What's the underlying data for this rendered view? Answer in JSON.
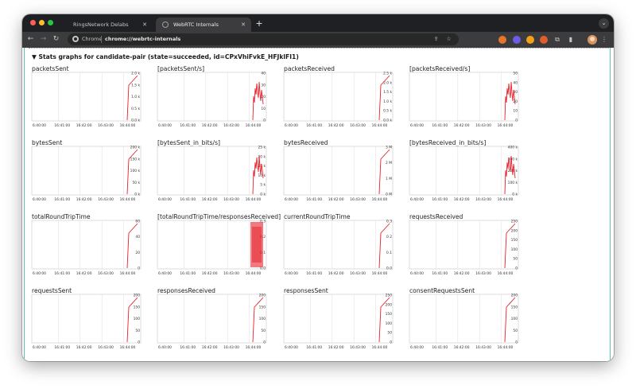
{
  "browser": {
    "tabs": [
      {
        "title": "RingsNetwork Delabs",
        "active": false
      },
      {
        "title": "WebRTC Internals",
        "active": true
      }
    ],
    "omnibox": {
      "chip": "Chrome",
      "url": "chrome://webrtc-internals"
    },
    "colors": {
      "frame": "#1f2023",
      "toolbar": "#3c3c3f",
      "accent": "#5fc1b0",
      "trace": "#e8202a"
    }
  },
  "page": {
    "section_title": "▼ Stats graphs for candidate-pair (state=succeeded, id=CPxVhiFvkE_HFJklFI1)",
    "x_ticks": [
      "6:40:00",
      "16:41:00",
      "16:42:00",
      "16:43:00",
      "16:44:00"
    ]
  },
  "graphs": [
    {
      "label": "packetsSent",
      "y_ticks": [
        "2.0 k",
        "1.5 k",
        "1.0 k",
        "0.5 k",
        "0.0 k"
      ],
      "shape": "ramp",
      "range": [
        0,
        2000
      ]
    },
    {
      "label": "[packetsSent/s]",
      "y_ticks": [
        "40",
        "30",
        "20",
        "10",
        "0"
      ],
      "shape": "noisy",
      "range": [
        0,
        40
      ]
    },
    {
      "label": "packetsReceived",
      "y_ticks": [
        "2.5 k",
        "2.0 k",
        "1.5 k",
        "1.0 k",
        "0.5 k",
        "0.0 k"
      ],
      "shape": "ramp",
      "range": [
        0,
        2500
      ]
    },
    {
      "label": "[packetsReceived/s]",
      "y_ticks": [
        "50",
        "40",
        "30",
        "20",
        "10",
        "0"
      ],
      "shape": "noisy",
      "range": [
        0,
        50
      ]
    },
    {
      "label": "bytesSent",
      "y_ticks": [
        "200 k",
        "150 k",
        "100 k",
        "50 k",
        "0 k"
      ],
      "shape": "ramp",
      "range": [
        0,
        200000
      ]
    },
    {
      "label": "[bytesSent_in_bits/s]",
      "y_ticks": [
        "25 k",
        "20 k",
        "15 k",
        "10 k",
        "5 k",
        "0 k"
      ],
      "shape": "noisy",
      "range": [
        0,
        25000
      ]
    },
    {
      "label": "bytesReceived",
      "y_ticks": [
        "3 M",
        "2 M",
        "1 M",
        "0 M"
      ],
      "shape": "ramp",
      "range": [
        0,
        3000000
      ]
    },
    {
      "label": "[bytesReceived_in_bits/s]",
      "y_ticks": [
        "400 k",
        "300 k",
        "200 k",
        "100 k",
        "0 k"
      ],
      "shape": "noisy",
      "range": [
        0,
        400000
      ]
    },
    {
      "label": "totalRoundTripTime",
      "y_ticks": [
        "60",
        "40",
        "20",
        "0"
      ],
      "shape": "ramp",
      "range": [
        0,
        60
      ]
    },
    {
      "label": "[totalRoundTripTime/responsesReceived]",
      "y_ticks": [
        "0.3",
        "0.2",
        "0.1",
        "0.0"
      ],
      "shape": "dense",
      "range": [
        0,
        0.3
      ]
    },
    {
      "label": "currentRoundTripTime",
      "y_ticks": [
        "0.3",
        "0.2",
        "0.1",
        "0.0"
      ],
      "shape": "ramp",
      "range": [
        0,
        0.3
      ]
    },
    {
      "label": "requestsReceived",
      "y_ticks": [
        "250",
        "200",
        "150",
        "100",
        "50",
        "0"
      ],
      "shape": "ramp",
      "range": [
        0,
        250
      ]
    },
    {
      "label": "requestsSent",
      "y_ticks": [
        "200",
        "150",
        "100",
        "50",
        "0"
      ],
      "shape": "ramp",
      "range": [
        0,
        200
      ]
    },
    {
      "label": "responsesReceived",
      "y_ticks": [
        "200",
        "150",
        "100",
        "50",
        "0"
      ],
      "shape": "ramp",
      "range": [
        0,
        200
      ]
    },
    {
      "label": "responsesSent",
      "y_ticks": [
        "250",
        "200",
        "150",
        "100",
        "50",
        "0"
      ],
      "shape": "ramp",
      "range": [
        0,
        250
      ]
    },
    {
      "label": "consentRequestsSent",
      "y_ticks": [
        "200",
        "150",
        "100",
        "50",
        "0"
      ],
      "shape": "ramp",
      "range": [
        0,
        200
      ]
    }
  ]
}
